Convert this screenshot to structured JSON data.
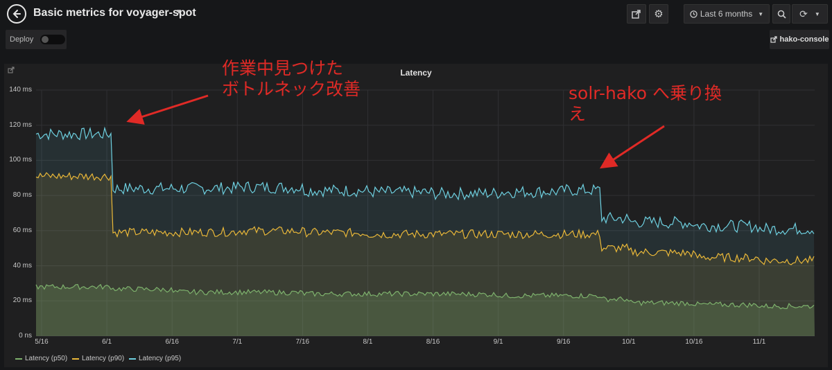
{
  "header": {
    "title": "Basic metrics for voyager-spot",
    "time_range": "Last 6 months"
  },
  "toolbar": {
    "deploy_label": "Deploy",
    "hako_console_label": "hako-console"
  },
  "panel": {
    "title": "Latency"
  },
  "annotations": {
    "left": [
      "作業中見つけた",
      "ボトルネック改善"
    ],
    "right": [
      "solr-hako へ乗り換",
      "え"
    ]
  },
  "colors": {
    "p50": "#7eb26d",
    "p90": "#eab839",
    "p95": "#6ed0e0",
    "annotation": "#e02a26"
  },
  "chart_data": {
    "type": "area",
    "title": "Latency",
    "x": [
      "5/16",
      "6/1",
      "6/16",
      "7/1",
      "7/16",
      "8/1",
      "8/16",
      "9/1",
      "9/16",
      "10/1",
      "10/16",
      "11/1"
    ],
    "y_ticks": [
      "0 ns",
      "20 ms",
      "40 ms",
      "60 ms",
      "80 ms",
      "100 ms",
      "120 ms",
      "140 ms"
    ],
    "ylim": [
      0,
      140
    ],
    "grid": true,
    "legend_position": "bottom-left",
    "series": [
      {
        "name": "Latency (p50)",
        "values": [
          28,
          27,
          25,
          25,
          24,
          24,
          24,
          23,
          23,
          19,
          18,
          17
        ]
      },
      {
        "name": "Latency (p90)",
        "values": [
          91,
          59,
          59,
          60,
          59,
          58,
          58,
          58,
          58,
          48,
          45,
          43
        ]
      },
      {
        "name": "Latency (p95)",
        "values": [
          115,
          84,
          84,
          85,
          83,
          82,
          81,
          82,
          83,
          65,
          63,
          61
        ]
      }
    ]
  }
}
